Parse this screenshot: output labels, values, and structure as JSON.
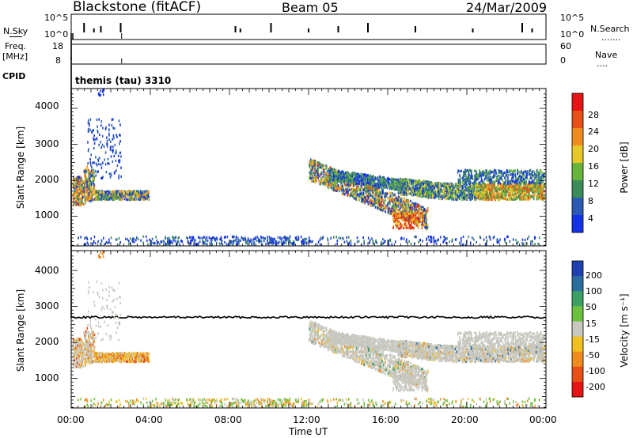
{
  "header": {
    "station": "Blackstone (fitACF)",
    "beam": "Beam 05",
    "date": "24/Mar/2009"
  },
  "strip_labels": {
    "nsky": "N.Sky",
    "nsearch": "N.Search",
    "freq_line1": "Freq.",
    "freq_line2": "[MHz]",
    "nave": "Nave",
    "cpid": "CPID",
    "cpid_value": "themis (tau) 3310"
  },
  "colors": {
    "scatter_green": "#5fb83c",
    "ground_scatter_grey": "#c8c8c0"
  },
  "chart_data": [
    {
      "type": "line",
      "title": "N.Sky / N.Search",
      "ylabel_left": "N.Sky",
      "ylabel_right": "N.Search",
      "yticks_left": [
        "10^5",
        "10^0"
      ],
      "yticks_right": [
        "10^5",
        "10^0"
      ],
      "spikes_hours": [
        0.65,
        1.15,
        1.5,
        2.5,
        8.3,
        8.55,
        10.1,
        12.0,
        13.5,
        15.0,
        17.4,
        20.3,
        22.8,
        23.3
      ]
    },
    {
      "type": "line",
      "title": "Freq / Nave",
      "ylabel_left": "Freq. [MHz]",
      "ylabel_right": "Nave",
      "yticks_left": [
        "18",
        "8"
      ],
      "yticks_right": [
        "60",
        "0"
      ]
    },
    {
      "type": "heatmap",
      "name": "power",
      "xlabel": "Time UT",
      "ylabel": "Slant Range [km]",
      "xlim_hours": [
        0,
        24
      ],
      "ylim_km": [
        180,
        4550
      ],
      "yticks": [
        "1000",
        "2000",
        "3000",
        "4000"
      ],
      "colorbar_label": "Power [dB]",
      "colorbar_ticks": [
        "4",
        "8",
        "12",
        "16",
        "20",
        "24",
        "28"
      ],
      "colorbar_colors": [
        "#1432e6",
        "#2a5ab4",
        "#3c8c5a",
        "#66b43c",
        "#e6c828",
        "#f08c1e",
        "#e65014",
        "#e61414"
      ]
    },
    {
      "type": "heatmap",
      "name": "velocity",
      "xlabel": "Time UT",
      "ylabel": "Slant Range [km]",
      "xlim_hours": [
        0,
        24
      ],
      "ylim_km": [
        180,
        4550
      ],
      "yticks": [
        "1000",
        "2000",
        "3000",
        "4000"
      ],
      "colorbar_label": "Velocity [m s⁻¹]",
      "colorbar_ticks": [
        "200",
        "100",
        "50",
        "15",
        "-15",
        "-50",
        "-100",
        "-200"
      ],
      "colorbar_colors": [
        "#2040b0",
        "#2a6ea0",
        "#3ca064",
        "#6cc23c",
        "#c8c8c0",
        "#f0c020",
        "#f08c1e",
        "#e65014",
        "#e61414"
      ]
    }
  ],
  "xaxis": {
    "ticks": [
      "00:00",
      "04:00",
      "08:00",
      "12:00",
      "16:00",
      "20:00",
      "00:00"
    ],
    "label": "Time UT"
  }
}
